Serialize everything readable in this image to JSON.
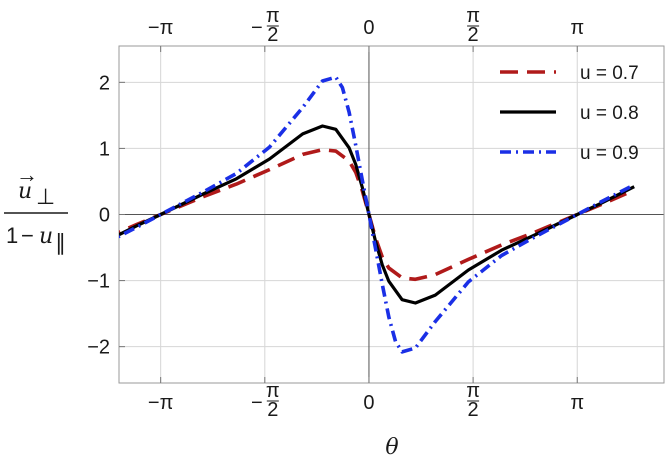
{
  "chart_data": {
    "type": "line",
    "xlabel": "θ",
    "ylabel": {
      "numerator_var": "u",
      "numerator_sub": "⊥",
      "denominator_one": "1",
      "denominator_minus": "−",
      "denominator_var": "u",
      "denominator_sub": "∥"
    },
    "xlim": [
      -3.77,
      4.45
    ],
    "ylim": [
      -2.55,
      2.55
    ],
    "grid": true,
    "legend_position": "top-right",
    "x_ticks": [
      {
        "value": -3.14159,
        "label": "−π"
      },
      {
        "value": -1.5708,
        "label_prefix": "−",
        "label_num": "π",
        "label_den": "2"
      },
      {
        "value": 0,
        "label": "0"
      },
      {
        "value": 1.5708,
        "label_num": "π",
        "label_den": "2"
      },
      {
        "value": 3.14159,
        "label": "π"
      }
    ],
    "y_ticks": [
      {
        "value": -2,
        "label": "−2"
      },
      {
        "value": -1,
        "label": "−1"
      },
      {
        "value": 0,
        "label": "0"
      },
      {
        "value": 1,
        "label": "1"
      },
      {
        "value": 2,
        "label": "2"
      }
    ],
    "series": [
      {
        "name": "u = 0.7",
        "color": "#b01a1a",
        "style": "dashed",
        "x": [
          -4.0,
          -3.5,
          -3.14159,
          -2.5,
          -2.0,
          -1.5,
          -1.0,
          -0.7,
          -0.5,
          -0.3,
          -0.2,
          -0.1,
          0,
          0.1,
          0.2,
          0.3,
          0.5,
          0.7,
          1.0,
          1.5,
          2.0,
          2.5,
          3.14159,
          3.5,
          4.0
        ],
        "values": [
          -0.37,
          -0.15,
          0,
          0.27,
          0.46,
          0.68,
          0.91,
          0.98,
          0.96,
          0.81,
          0.64,
          0.36,
          0,
          -0.36,
          -0.64,
          -0.81,
          -0.96,
          -0.98,
          -0.91,
          -0.68,
          -0.46,
          -0.27,
          0,
          0.15,
          0.37
        ]
      },
      {
        "name": "u = 0.8",
        "color": "#000000",
        "style": "solid",
        "x": [
          -4.0,
          -3.5,
          -3.14159,
          -2.5,
          -2.0,
          -1.5,
          -1.0,
          -0.7,
          -0.5,
          -0.3,
          -0.2,
          -0.1,
          0,
          0.1,
          0.2,
          0.3,
          0.5,
          0.7,
          1.0,
          1.5,
          2.0,
          2.5,
          3.14159,
          3.5,
          4.0
        ],
        "values": [
          -0.42,
          -0.17,
          0,
          0.31,
          0.54,
          0.84,
          1.22,
          1.34,
          1.29,
          1.01,
          0.76,
          0.41,
          0,
          -0.41,
          -0.76,
          -1.01,
          -1.29,
          -1.34,
          -1.22,
          -0.84,
          -0.54,
          -0.31,
          0,
          0.17,
          0.42
        ]
      },
      {
        "name": "u = 0.9",
        "color": "#1a2fe6",
        "style": "dashdot",
        "x": [
          -4.0,
          -3.5,
          -3.14159,
          -2.5,
          -2.0,
          -1.5,
          -1.0,
          -0.7,
          -0.5,
          -0.4,
          -0.3,
          -0.2,
          -0.1,
          0,
          0.1,
          0.2,
          0.3,
          0.4,
          0.5,
          0.7,
          1.0,
          1.5,
          2.0,
          2.5,
          3.14159,
          3.5,
          4.0
        ],
        "values": [
          -0.45,
          -0.19,
          0,
          0.34,
          0.62,
          1.02,
          1.62,
          2.02,
          2.08,
          1.92,
          1.55,
          1.05,
          0.52,
          0,
          -0.52,
          -1.05,
          -1.55,
          -1.92,
          -2.08,
          -2.02,
          -1.62,
          -1.02,
          -0.62,
          -0.34,
          0,
          0.19,
          0.45
        ]
      }
    ]
  }
}
